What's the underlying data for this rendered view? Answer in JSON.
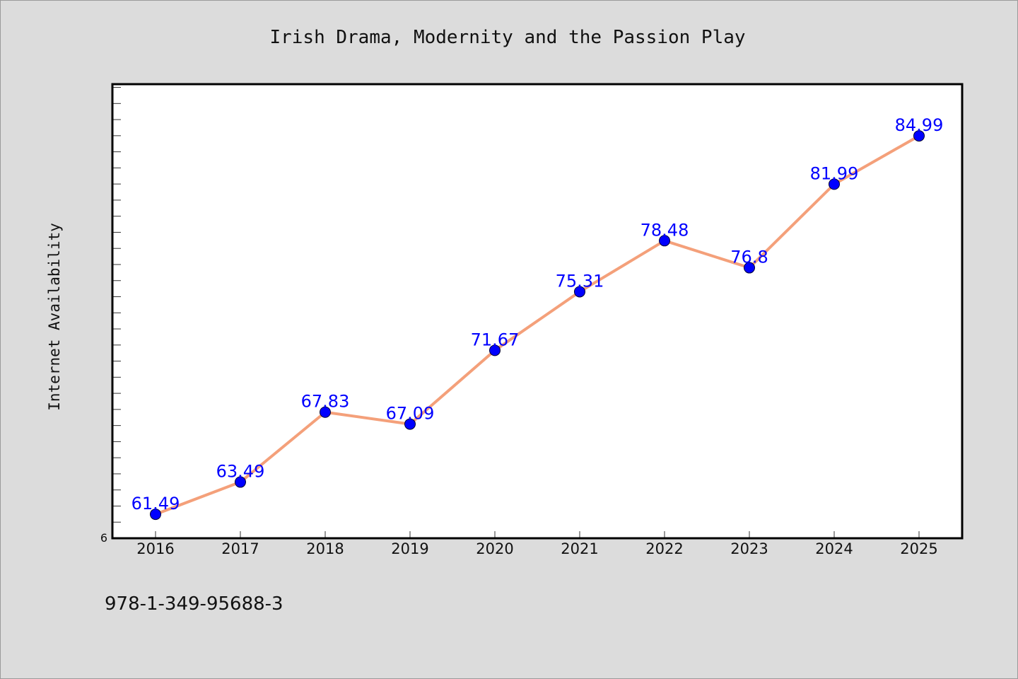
{
  "chart_data": {
    "type": "line",
    "title": "Irish Drama, Modernity and the Passion Play",
    "xlabel": "",
    "ylabel": "Internet Availability",
    "categories": [
      "2016",
      "2017",
      "2018",
      "2019",
      "2020",
      "2021",
      "2022",
      "2023",
      "2024",
      "2025"
    ],
    "series": [
      {
        "values": [
          61.49,
          63.49,
          67.83,
          67.09,
          71.67,
          75.31,
          78.48,
          76.8,
          81.99,
          84.99
        ],
        "labels": [
          "61.49",
          "63.49",
          "67.83",
          "67.09",
          "71.67",
          "75.31",
          "78.48",
          "76.8",
          "81.99",
          "84.99"
        ],
        "line_color": "#f4a07a",
        "marker_color": "#0000ff"
      }
    ],
    "ylim": [
      60,
      88.2
    ],
    "ytick_label": "6",
    "grid": false,
    "legend": "none"
  },
  "footer": {
    "isbn": "978-1-349-95688-3"
  },
  "colors": {
    "background": "#dcdcdc",
    "plot_background": "#ffffff",
    "data_label": "#0000ff"
  }
}
